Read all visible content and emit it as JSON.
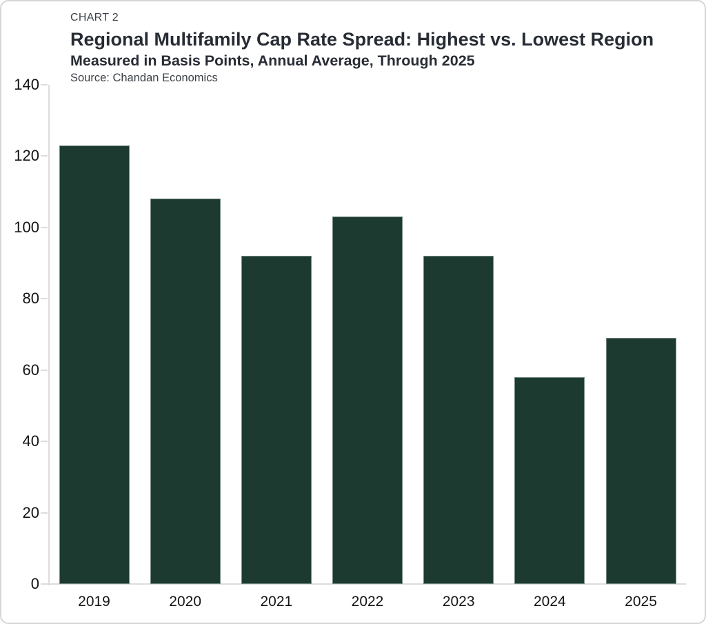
{
  "header": {
    "chart_label": "CHART 2",
    "title": "Regional Multifamily Cap Rate Spread: Highest vs. Lowest Region",
    "subtitle": "Measured in Basis Points, Annual Average, Through 2025",
    "source": "Source: Chandan Economics"
  },
  "chart_data": {
    "type": "bar",
    "categories": [
      "2019",
      "2020",
      "2021",
      "2022",
      "2023",
      "2024",
      "2025"
    ],
    "values": [
      123,
      108,
      92,
      103,
      92,
      58,
      69
    ],
    "title": "Regional Multifamily Cap Rate Spread: Highest vs. Lowest Region",
    "subtitle": "Measured in Basis Points, Annual Average, Through 2025",
    "source": "Source: Chandan Economics",
    "xlabel": "",
    "ylabel": "",
    "ylim": [
      0,
      140
    ],
    "ytick_step": 20,
    "yticks": [
      0,
      20,
      40,
      60,
      80,
      100,
      120,
      140
    ],
    "grid": false,
    "legend": null,
    "bar_color": "#1d3a31",
    "axis_color": "#dcdcdc",
    "text_color": "#141414",
    "background_color": "#ffffff"
  }
}
